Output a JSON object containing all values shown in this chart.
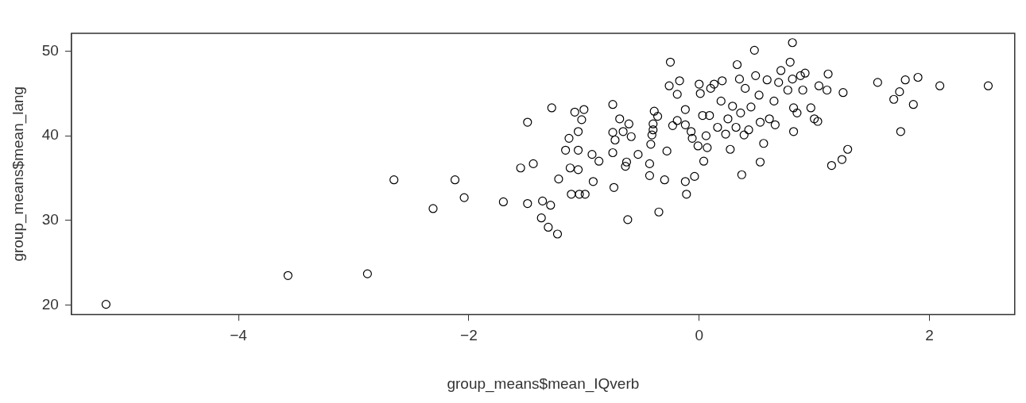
{
  "chart_data": {
    "type": "scatter",
    "xlabel": "group_means$mean_IQverb",
    "ylabel": "group_means$mean_lang",
    "marker": "circle",
    "xlim": [
      -5.45,
      2.74
    ],
    "ylim": [
      18.9,
      52.1
    ],
    "xticks": [
      -4,
      -2,
      0,
      2
    ],
    "yticks": [
      20,
      30,
      40,
      50
    ],
    "series": [
      {
        "color": "#000000",
        "x": [
          -5.15,
          -3.57,
          -2.88,
          -2.65,
          -2.31,
          -2.12,
          -2.04,
          -1.7,
          -1.55,
          -1.49,
          -1.49,
          -1.44,
          -1.36,
          -1.37,
          -1.31,
          -1.29,
          -1.28,
          -1.23,
          -1.22,
          -1.16,
          -1.13,
          -1.12,
          -1.11,
          -1.08,
          -1.02,
          -1.0,
          -1.05,
          -1.05,
          -1.05,
          -1.04,
          -0.99,
          -0.93,
          -0.92,
          -0.87,
          -0.75,
          -0.75,
          -0.74,
          -0.75,
          -0.73,
          -0.69,
          -0.66,
          -0.64,
          -0.63,
          -0.61,
          -0.62,
          -0.59,
          -0.53,
          -0.43,
          -0.43,
          -0.42,
          -0.41,
          -0.4,
          -0.4,
          -0.39,
          -0.36,
          -0.35,
          -0.3,
          -0.28,
          -0.26,
          -0.25,
          -0.23,
          -0.19,
          -0.17,
          -0.19,
          -0.12,
          -0.12,
          -0.12,
          -0.11,
          -0.07,
          -0.06,
          -0.04,
          -0.01,
          0.0,
          0.01,
          0.03,
          0.04,
          0.07,
          0.06,
          0.09,
          0.1,
          0.13,
          0.16,
          0.19,
          0.2,
          0.23,
          0.25,
          0.27,
          0.29,
          0.32,
          0.33,
          0.35,
          0.36,
          0.37,
          0.39,
          0.4,
          0.43,
          0.45,
          0.48,
          0.49,
          0.52,
          0.53,
          0.53,
          0.56,
          0.59,
          0.61,
          0.65,
          0.66,
          0.69,
          0.71,
          0.77,
          0.79,
          0.81,
          0.81,
          0.82,
          0.82,
          0.85,
          0.88,
          0.9,
          0.92,
          0.97,
          1.0,
          1.03,
          1.04,
          1.11,
          1.12,
          1.15,
          1.24,
          1.25,
          1.29,
          1.55,
          1.69,
          1.74,
          1.75,
          1.79,
          1.86,
          1.9,
          2.09,
          2.51
        ],
        "values": [
          20.1,
          23.5,
          23.7,
          34.8,
          31.4,
          34.8,
          32.7,
          32.2,
          36.2,
          41.6,
          32.0,
          36.7,
          32.3,
          30.3,
          29.2,
          31.8,
          43.3,
          28.4,
          34.9,
          38.3,
          39.7,
          36.2,
          33.1,
          42.8,
          41.9,
          43.1,
          40.5,
          38.3,
          36.0,
          33.1,
          33.1,
          37.8,
          34.6,
          37.0,
          43.7,
          40.4,
          33.9,
          38.0,
          39.5,
          42.0,
          40.5,
          36.4,
          36.9,
          41.4,
          30.1,
          39.9,
          37.8,
          35.3,
          36.7,
          39.0,
          40.1,
          41.4,
          40.7,
          42.9,
          42.3,
          31.0,
          34.8,
          38.2,
          45.9,
          48.7,
          41.2,
          44.9,
          46.5,
          41.8,
          41.3,
          43.1,
          34.6,
          33.1,
          40.5,
          39.7,
          35.2,
          38.8,
          46.1,
          45.0,
          42.4,
          37.0,
          38.6,
          40.0,
          42.4,
          45.6,
          46.1,
          41.0,
          44.1,
          46.5,
          40.2,
          42.0,
          38.4,
          43.5,
          41.0,
          48.4,
          46.7,
          42.7,
          35.4,
          40.1,
          45.6,
          40.7,
          43.4,
          50.1,
          47.1,
          44.8,
          41.6,
          36.9,
          39.1,
          46.6,
          42.0,
          44.1,
          41.3,
          46.3,
          47.7,
          45.4,
          48.7,
          51.0,
          46.7,
          40.5,
          43.3,
          42.7,
          47.1,
          45.4,
          47.4,
          43.3,
          42.0,
          41.7,
          45.9,
          45.4,
          47.3,
          36.5,
          37.2,
          45.1,
          38.4,
          46.3,
          44.3,
          45.2,
          40.5,
          46.6,
          43.7,
          46.9,
          45.9,
          45.9
        ]
      }
    ]
  }
}
